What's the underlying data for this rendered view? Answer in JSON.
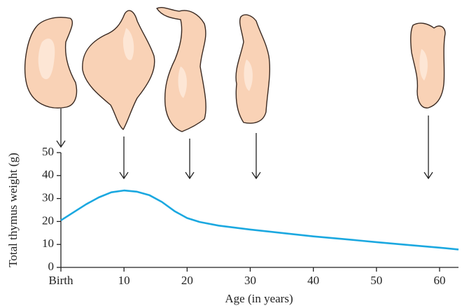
{
  "chart_data": {
    "type": "line",
    "x_label": "Age (in years)",
    "y_label": "Total thymus weight (g)",
    "series": [
      {
        "color": "#1ba8e0",
        "x": [
          0,
          2,
          4,
          6,
          8,
          10,
          12,
          14,
          16,
          18,
          20,
          22,
          25,
          30,
          35,
          40,
          45,
          50,
          55,
          60,
          63
        ],
        "values": [
          20.5,
          24,
          27.5,
          30.5,
          32.7,
          33.5,
          33,
          31.5,
          28.5,
          24.5,
          21.5,
          19.8,
          18.2,
          16.5,
          15,
          13.5,
          12.3,
          11,
          9.8,
          8.6,
          7.8
        ]
      }
    ],
    "xlim": [
      0,
      63
    ],
    "ylim": [
      0,
      50
    ],
    "xticks": [
      {
        "value": 0,
        "label": "Birth"
      },
      10,
      20,
      30,
      40,
      50,
      60
    ],
    "yticks": [
      0,
      10,
      20,
      30,
      40,
      50
    ]
  }
}
